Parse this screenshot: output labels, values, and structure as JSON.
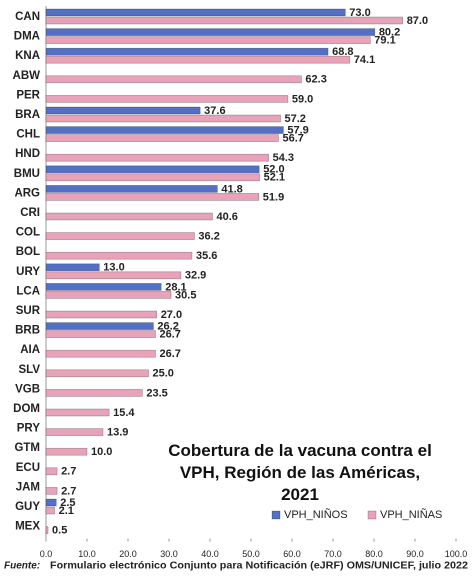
{
  "chart_data": {
    "type": "bar",
    "orientation": "horizontal",
    "title": "Cobertura de la vacuna contra el VPH, Región de las Américas, 2021",
    "categories": [
      "CAN",
      "DMA",
      "KNA",
      "ABW",
      "PER",
      "BRA",
      "CHL",
      "HND",
      "BMU",
      "ARG",
      "CRI",
      "COL",
      "BOL",
      "URY",
      "LCA",
      "SUR",
      "BRB",
      "AIA",
      "SLV",
      "VGB",
      "DOM",
      "PRY",
      "GTM",
      "ECU",
      "JAM",
      "GUY",
      "MEX"
    ],
    "series": [
      {
        "name": "VPH_NIÑOS",
        "color": "#5470c6",
        "values": [
          73.0,
          80.2,
          68.8,
          null,
          null,
          37.6,
          57.9,
          null,
          52.0,
          41.8,
          null,
          null,
          null,
          13.0,
          28.1,
          null,
          26.2,
          null,
          null,
          null,
          null,
          null,
          null,
          null,
          null,
          2.5,
          null
        ],
        "value_labels": [
          "73.0",
          "80.2",
          "68.8",
          null,
          null,
          "37.6",
          "57.9",
          null,
          "52.0",
          "41.8",
          null,
          null,
          null,
          "13.0",
          "28.1",
          null,
          "26.2",
          null,
          null,
          null,
          null,
          null,
          null,
          null,
          null,
          "2.5",
          null
        ]
      },
      {
        "name": "VPH_NIÑAS",
        "color": "#e9a3b8",
        "values": [
          87.0,
          79.1,
          74.1,
          62.3,
          59.0,
          57.2,
          56.7,
          54.3,
          52.1,
          51.9,
          40.6,
          36.2,
          35.6,
          32.9,
          30.5,
          27.0,
          26.7,
          26.7,
          25.0,
          23.5,
          15.4,
          13.9,
          10.0,
          2.7,
          2.7,
          2.1,
          0.5
        ],
        "value_labels": [
          "87.0",
          "79.1",
          "74.1",
          "62.3",
          "59.0",
          "57.2",
          "56.7",
          "54.3",
          "52.1",
          "51.9",
          "40.6",
          "36.2",
          "35.6",
          "32.9",
          "30.5",
          "27.0",
          "26.7",
          "26.7",
          "25.0",
          "23.5",
          "15.4",
          "13.9",
          "10.0",
          "2.7",
          "2.7",
          "2.1",
          "0.5"
        ]
      }
    ],
    "xlim": [
      0,
      100
    ],
    "xticks": [
      {
        "value": 0,
        "label": "0.0"
      },
      {
        "value": 10,
        "label": "10.0"
      },
      {
        "value": 20,
        "label": "20.0"
      },
      {
        "value": 30,
        "label": "30.0"
      },
      {
        "value": 40,
        "label": "40.0"
      },
      {
        "value": 50,
        "label": "50.0"
      },
      {
        "value": 60,
        "label": "60.0"
      },
      {
        "value": 70,
        "label": "70.0"
      },
      {
        "value": 80,
        "label": "80.0"
      },
      {
        "value": 90,
        "label": "90.0"
      },
      {
        "value": 100,
        "label": "100.0"
      }
    ],
    "grid": false,
    "legend": "lower right",
    "source_label": "Fuente:",
    "source": "Formulario electrónico Conjunto para Notificación (eJRF) OMS/UNICEF, julio 2022"
  }
}
